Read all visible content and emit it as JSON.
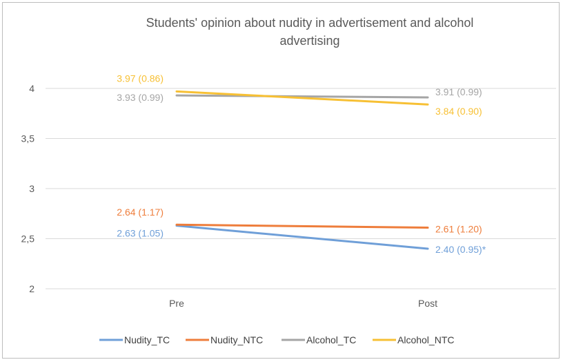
{
  "chart_data": {
    "type": "line",
    "title_lines": [
      "Students' opinion about nudity in advertisement and alcohol",
      "advertising"
    ],
    "categories": [
      "Pre",
      "Post"
    ],
    "ylim": [
      2,
      4
    ],
    "yticks": [
      {
        "value": 2,
        "label": "2"
      },
      {
        "value": 2.5,
        "label": "2,5"
      },
      {
        "value": 3,
        "label": "3"
      },
      {
        "value": 3.5,
        "label": "3,5"
      },
      {
        "value": 4,
        "label": "4"
      }
    ],
    "grid": true,
    "legend_position": "bottom",
    "series": [
      {
        "name": "Nudity_TC",
        "color": "#6f9fd8",
        "values": [
          2.63,
          2.4
        ],
        "labels": [
          "2.63 (1.05)",
          "2.40 (0.95)*"
        ]
      },
      {
        "name": "Nudity_NTC",
        "color": "#ee7d3b",
        "values": [
          2.64,
          2.61
        ],
        "labels": [
          "2.64 (1.17)",
          "2.61 (1.20)"
        ]
      },
      {
        "name": "Alcohol_TC",
        "color": "#a5a5a5",
        "values": [
          3.93,
          3.91
        ],
        "labels": [
          "3.93 (0.99)",
          "3.91 (0.99)"
        ]
      },
      {
        "name": "Alcohol_NTC",
        "color": "#f7c034",
        "values": [
          3.97,
          3.84
        ],
        "labels": [
          "3.97 (0.86)",
          "3.84 (0.90)"
        ]
      }
    ]
  }
}
